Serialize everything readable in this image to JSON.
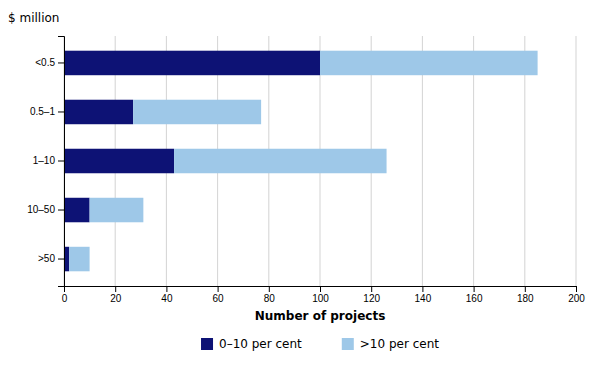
{
  "chart_data": {
    "type": "bar",
    "orientation": "horizontal",
    "stacked": true,
    "categories": [
      "<0.5",
      "0.5–1",
      "1–10",
      "10–50",
      ">50"
    ],
    "series": [
      {
        "name": "0–10 per cent",
        "color": "#0d1275",
        "values": [
          100,
          27,
          43,
          10,
          2
        ]
      },
      {
        "name": ">10 per cent",
        "color": "#9ec8e8",
        "values": [
          85,
          50,
          83,
          21,
          8
        ]
      }
    ],
    "xlabel": "Number of projects",
    "ylabel": "$ million",
    "xlim": [
      0,
      200
    ],
    "xticks": [
      0,
      20,
      40,
      60,
      80,
      100,
      120,
      140,
      160,
      180,
      200
    ],
    "grid": true,
    "legend": "bottom"
  }
}
